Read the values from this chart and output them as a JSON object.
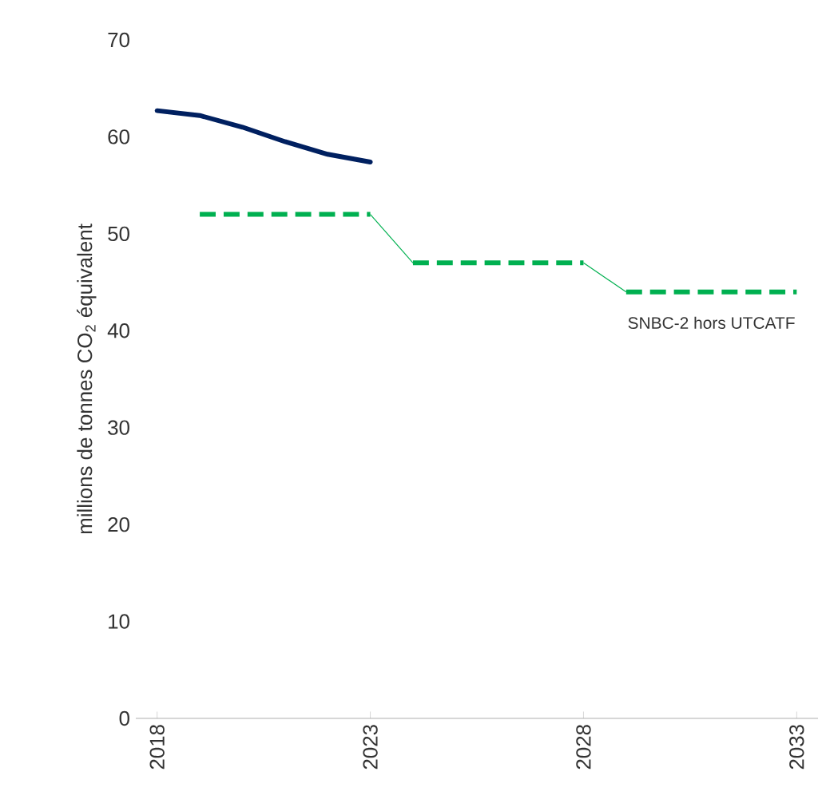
{
  "chart_data": {
    "type": "line",
    "ylabel": "millions de tonnes CO$_{2}$ équivalent",
    "xlim": [
      2017.5,
      2033.5
    ],
    "xticks": [
      2018,
      2023,
      2028,
      2033
    ],
    "ylim": [
      0,
      70
    ],
    "yticks": [
      0,
      10,
      20,
      30,
      40,
      50,
      60,
      70
    ],
    "series": [
      {
        "color": "#002060",
        "line_style": "solid",
        "x": [
          2018,
          2019,
          2020,
          2021,
          2022,
          2023
        ],
        "values": [
          62.7,
          62.2,
          61,
          59.5,
          58.2,
          57.4
        ]
      },
      {
        "name": "SNBC-2 hors UTCATF",
        "color": "#00b050",
        "line_style": "dashed",
        "x": [
          2019,
          2023,
          2024,
          2028,
          2029,
          2033
        ],
        "values": [
          52,
          52,
          47,
          47,
          44,
          44
        ]
      }
    ]
  }
}
